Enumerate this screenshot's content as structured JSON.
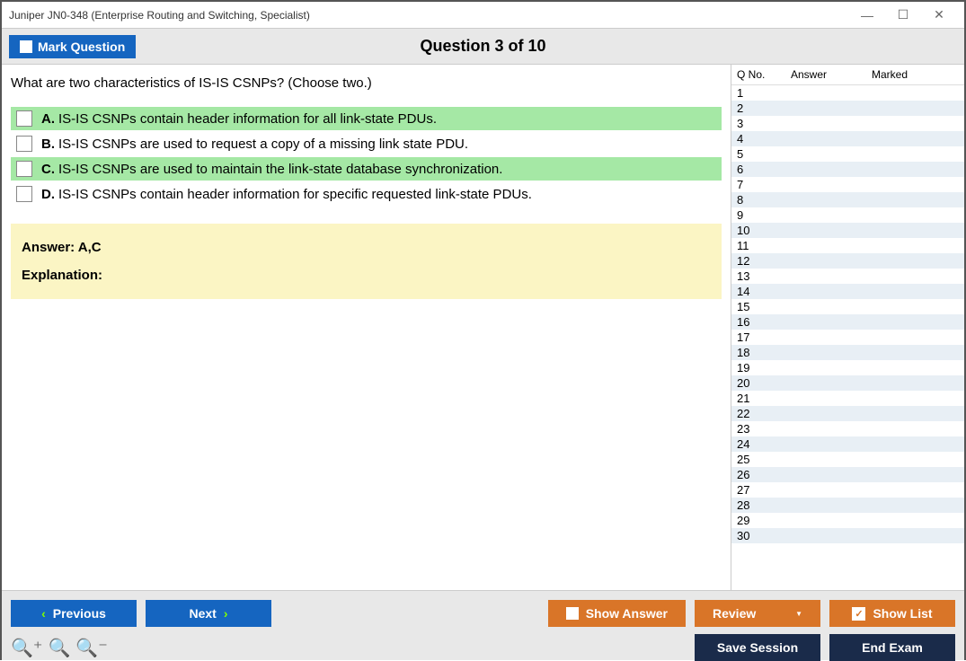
{
  "window": {
    "title": "Juniper JN0-348 (Enterprise Routing and Switching, Specialist)"
  },
  "header": {
    "mark_label": "Mark Question",
    "question_title": "Question 3 of 10"
  },
  "question": {
    "text": "What are two characteristics of IS-IS CSNPs? (Choose two.)",
    "choices": [
      {
        "letter": "A.",
        "text": "IS-IS CSNPs contain header information for all link-state PDUs.",
        "correct": true
      },
      {
        "letter": "B.",
        "text": "IS-IS CSNPs are used to request a copy of a missing link state PDU.",
        "correct": false
      },
      {
        "letter": "C.",
        "text": "IS-IS CSNPs are used to maintain the link-state database synchronization.",
        "correct": true
      },
      {
        "letter": "D.",
        "text": "IS-IS CSNPs contain header information for specific requested link-state PDUs.",
        "correct": false
      }
    ],
    "answer_label": "Answer: A,C",
    "explanation_label": "Explanation:"
  },
  "side": {
    "col_qno": "Q No.",
    "col_answer": "Answer",
    "col_marked": "Marked",
    "row_count": 30
  },
  "buttons": {
    "previous": "Previous",
    "next": "Next",
    "show_answer": "Show Answer",
    "review": "Review",
    "show_list": "Show List",
    "save_session": "Save Session",
    "end_exam": "End Exam"
  }
}
